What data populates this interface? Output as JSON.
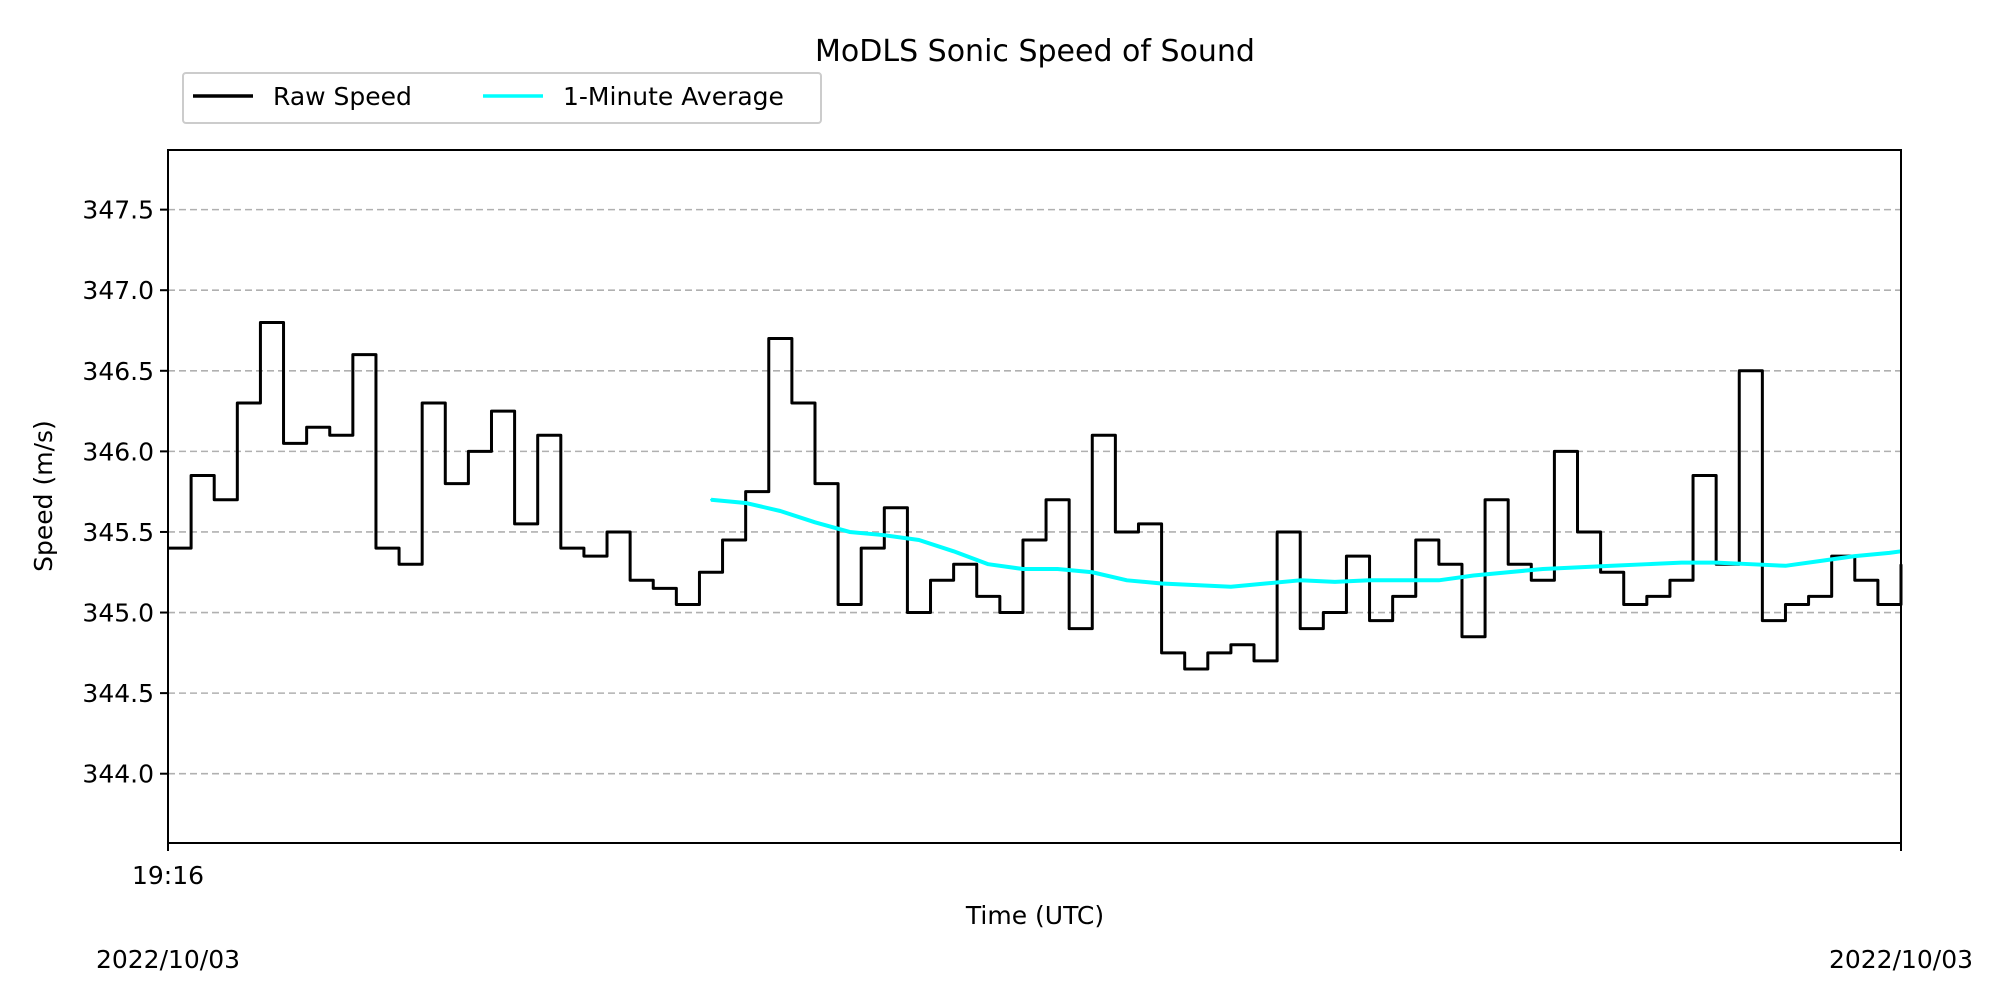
{
  "chart_data": {
    "type": "line",
    "title": "MoDLS Sonic Speed of Sound",
    "xlabel": "Time (UTC)",
    "ylabel": "Speed (m/s)",
    "ylim": [
      343.57,
      347.87
    ],
    "yticks": [
      344.0,
      344.5,
      345.0,
      345.5,
      346.0,
      346.5,
      347.0,
      347.5
    ],
    "ytick_labels": [
      "344.0",
      "344.5",
      "345.0",
      "345.5",
      "346.0",
      "346.5",
      "347.0",
      "347.5"
    ],
    "xtick_labels": [
      "19:16"
    ],
    "date_labels": {
      "left": "2022/10/03",
      "right": "2022/10/03"
    },
    "x_unit": "seconds since 19:16",
    "x_range_seconds": [
      0,
      150
    ],
    "grid": "y-axis, dashed",
    "legend": {
      "placement": "top-left, outside above plot",
      "columns": 2
    },
    "series": [
      {
        "name": "Raw Speed",
        "color": "#000000",
        "style": "steps",
        "x": [
          0,
          2,
          4,
          6,
          8,
          10,
          12,
          14,
          16,
          18,
          20,
          22,
          24,
          26,
          28,
          30,
          32,
          34,
          36,
          38,
          40,
          42,
          44,
          46,
          48,
          50,
          52,
          54,
          56,
          58,
          60,
          62,
          64,
          66,
          68,
          70,
          72,
          74,
          76,
          78,
          80,
          82,
          84,
          86,
          88,
          90,
          92,
          94,
          96,
          98,
          100,
          102,
          104,
          106,
          108,
          110,
          112,
          114,
          116,
          118,
          120,
          122,
          124,
          126,
          128,
          130,
          132,
          134,
          136,
          138,
          140,
          142,
          144,
          146,
          148,
          150
        ],
        "values": [
          345.4,
          345.85,
          345.7,
          346.3,
          346.8,
          346.05,
          346.15,
          346.1,
          346.6,
          345.4,
          345.3,
          346.3,
          345.8,
          346.0,
          346.25,
          345.55,
          346.1,
          345.4,
          345.35,
          345.5,
          345.2,
          345.15,
          345.05,
          345.25,
          345.45,
          345.75,
          346.7,
          346.3,
          345.8,
          345.05,
          345.4,
          345.65,
          345.0,
          345.2,
          345.3,
          345.1,
          345.0,
          345.45,
          345.7,
          344.9,
          346.1,
          345.5,
          345.55,
          344.75,
          344.65,
          344.75,
          344.8,
          344.7,
          345.5,
          344.9,
          345.0,
          345.35,
          344.95,
          345.1,
          345.45,
          345.3,
          344.85,
          345.7,
          345.3,
          345.2,
          346.0,
          345.5,
          345.25,
          345.05,
          345.1,
          345.2,
          345.85,
          345.3,
          346.5,
          344.95,
          345.05,
          345.1,
          345.35,
          345.2,
          345.05,
          345.3
        ]
      },
      {
        "name": "1-Minute Average",
        "color": "#00ffff",
        "style": "smooth",
        "x": [
          47,
          50,
          53,
          56,
          59,
          62,
          65,
          68,
          71,
          74,
          77,
          80,
          83,
          86,
          89,
          92,
          95,
          98,
          101,
          104,
          107,
          110,
          113,
          116,
          119,
          122,
          125,
          128,
          131,
          134,
          137,
          140,
          143,
          146,
          149,
          150
        ],
        "values": [
          345.7,
          345.68,
          345.63,
          345.56,
          345.5,
          345.48,
          345.45,
          345.38,
          345.3,
          345.27,
          345.27,
          345.25,
          345.2,
          345.18,
          345.17,
          345.16,
          345.18,
          345.2,
          345.19,
          345.2,
          345.2,
          345.2,
          345.23,
          345.25,
          345.27,
          345.28,
          345.29,
          345.3,
          345.31,
          345.31,
          345.3,
          345.29,
          345.32,
          345.35,
          345.37,
          345.38
        ]
      }
    ]
  }
}
